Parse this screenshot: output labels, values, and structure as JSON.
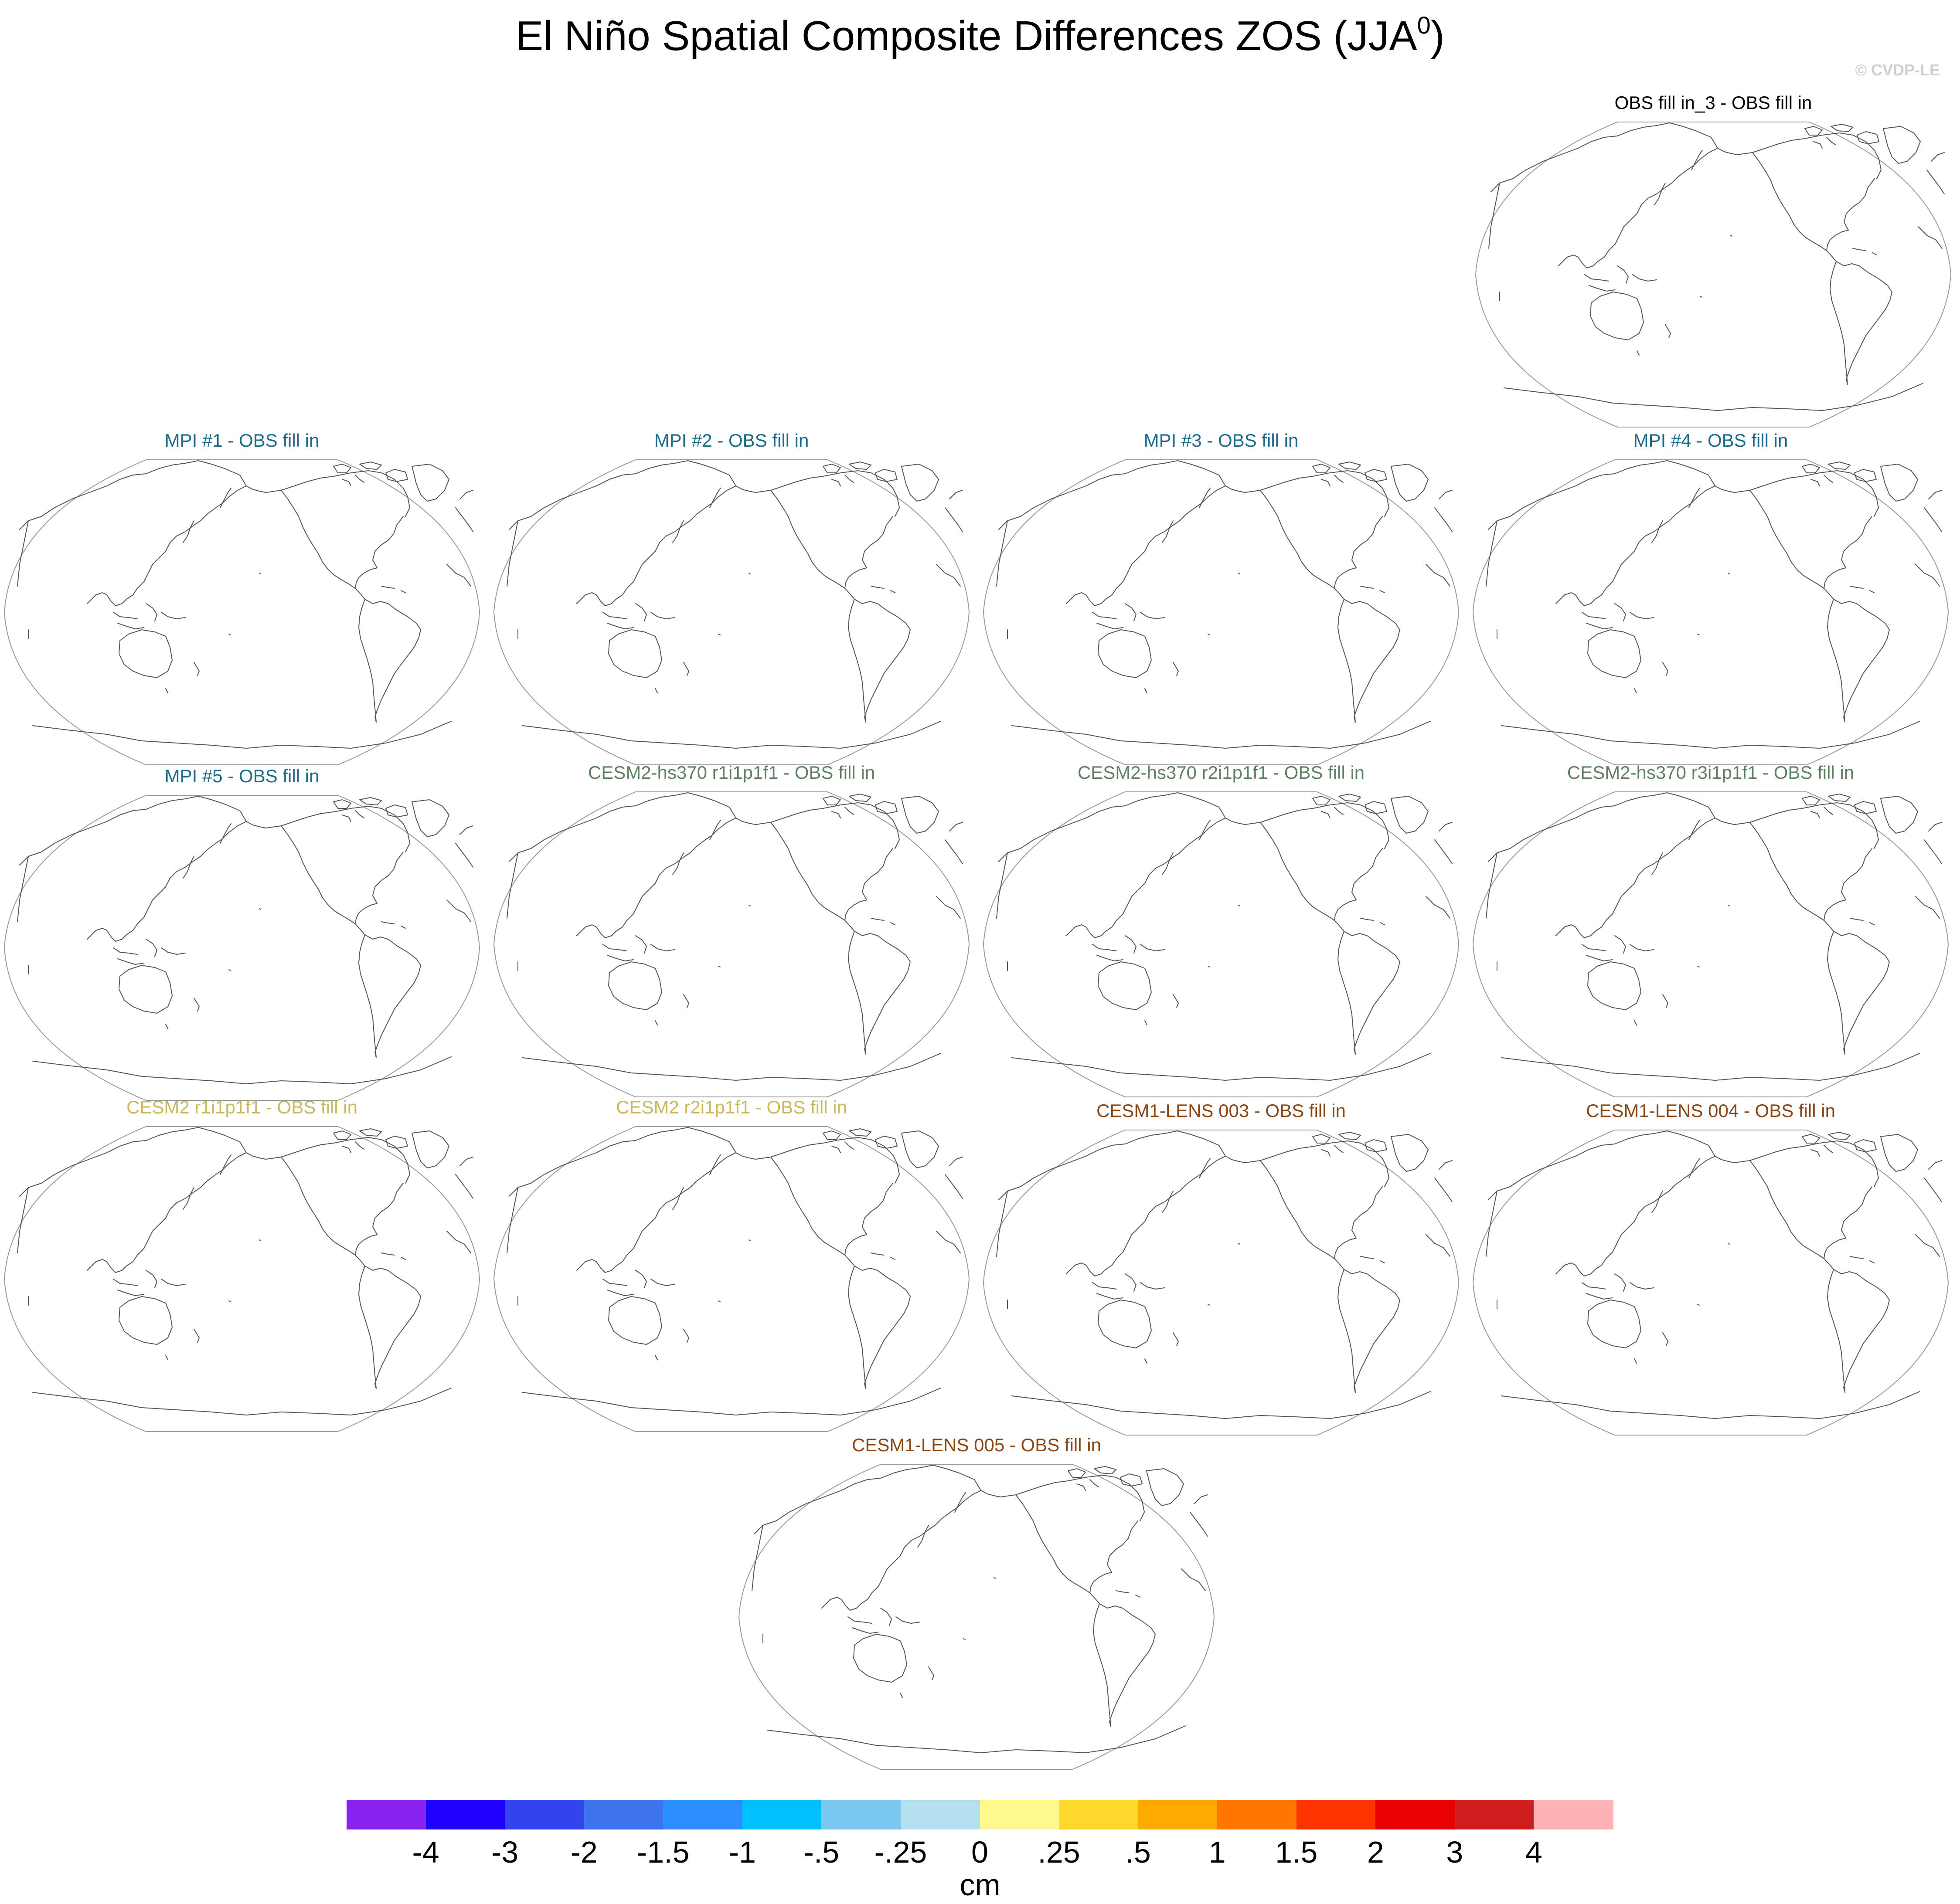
{
  "title": {
    "main": "El Niño Spatial Composite Differences ZOS (JJA",
    "superscript": "0",
    "close": ")"
  },
  "watermark": "© CVDP-LE",
  "colors": {
    "coastline": "#555555",
    "map_border": "#9a9a9a"
  },
  "panels": [
    {
      "title": "OBS fill in_3 - OBS fill in",
      "color": "#000000"
    },
    {
      "title": "MPI #1 - OBS fill in",
      "color": "#1a6a8a"
    },
    {
      "title": "MPI #2 - OBS fill in",
      "color": "#1a6a8a"
    },
    {
      "title": "MPI #3 - OBS fill in",
      "color": "#1a6a8a"
    },
    {
      "title": "MPI #4 - OBS fill in",
      "color": "#1a6a8a"
    },
    {
      "title": "MPI #5 - OBS fill in",
      "color": "#1a6a8a"
    },
    {
      "title": "CESM2-hs370 r1i1p1f1 - OBS fill in",
      "color": "#5e8062"
    },
    {
      "title": "CESM2-hs370 r2i1p1f1 - OBS fill in",
      "color": "#5e8062"
    },
    {
      "title": "CESM2-hs370 r3i1p1f1 - OBS fill in",
      "color": "#5e8062"
    },
    {
      "title": "CESM2 r1i1p1f1 - OBS fill in",
      "color": "#c9b95a"
    },
    {
      "title": "CESM2 r2i1p1f1 - OBS fill in",
      "color": "#c9b95a"
    },
    {
      "title": "CESM1-LENS 003 - OBS fill in",
      "color": "#8b4513"
    },
    {
      "title": "CESM1-LENS 004 - OBS fill in",
      "color": "#8b4513"
    },
    {
      "title": "CESM1-LENS 005 - OBS fill in",
      "color": "#8b4513"
    }
  ],
  "colorbar": {
    "units": "cm",
    "labels": [
      "-4",
      "-3",
      "-2",
      "-1.5",
      "-1",
      "-.5",
      "-.25",
      "0",
      ".25",
      ".5",
      "1",
      "1.5",
      "2",
      "3",
      "4"
    ],
    "colors": [
      "#8822ee",
      "#2200ff",
      "#3344ee",
      "#3e73ee",
      "#2b8fff",
      "#00c0ff",
      "#78c8f0",
      "#b4e0f0",
      "#fff88e",
      "#ffd82c",
      "#ffaa00",
      "#ff7700",
      "#ff3300",
      "#e80000",
      "#d01e1e",
      "#ffb3b3"
    ]
  }
}
